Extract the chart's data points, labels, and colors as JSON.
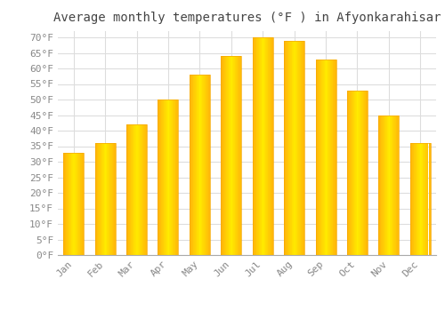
{
  "title": "Average monthly temperatures (°F ) in Afyonkarahisar",
  "months": [
    "Jan",
    "Feb",
    "Mar",
    "Apr",
    "May",
    "Jun",
    "Jul",
    "Aug",
    "Sep",
    "Oct",
    "Nov",
    "Dec"
  ],
  "values": [
    33,
    36,
    42,
    50,
    58,
    64,
    70,
    69,
    63,
    53,
    45,
    36
  ],
  "bar_color_center": "#FFD060",
  "bar_color_edge": "#F5A800",
  "background_color": "#FFFFFF",
  "grid_color": "#DDDDDD",
  "text_color": "#888888",
  "title_color": "#444444",
  "axis_color": "#AAAAAA",
  "ylim": [
    0,
    72
  ],
  "yticks": [
    0,
    5,
    10,
    15,
    20,
    25,
    30,
    35,
    40,
    45,
    50,
    55,
    60,
    65,
    70
  ],
  "title_fontsize": 10,
  "tick_fontsize": 8,
  "bar_width": 0.65
}
